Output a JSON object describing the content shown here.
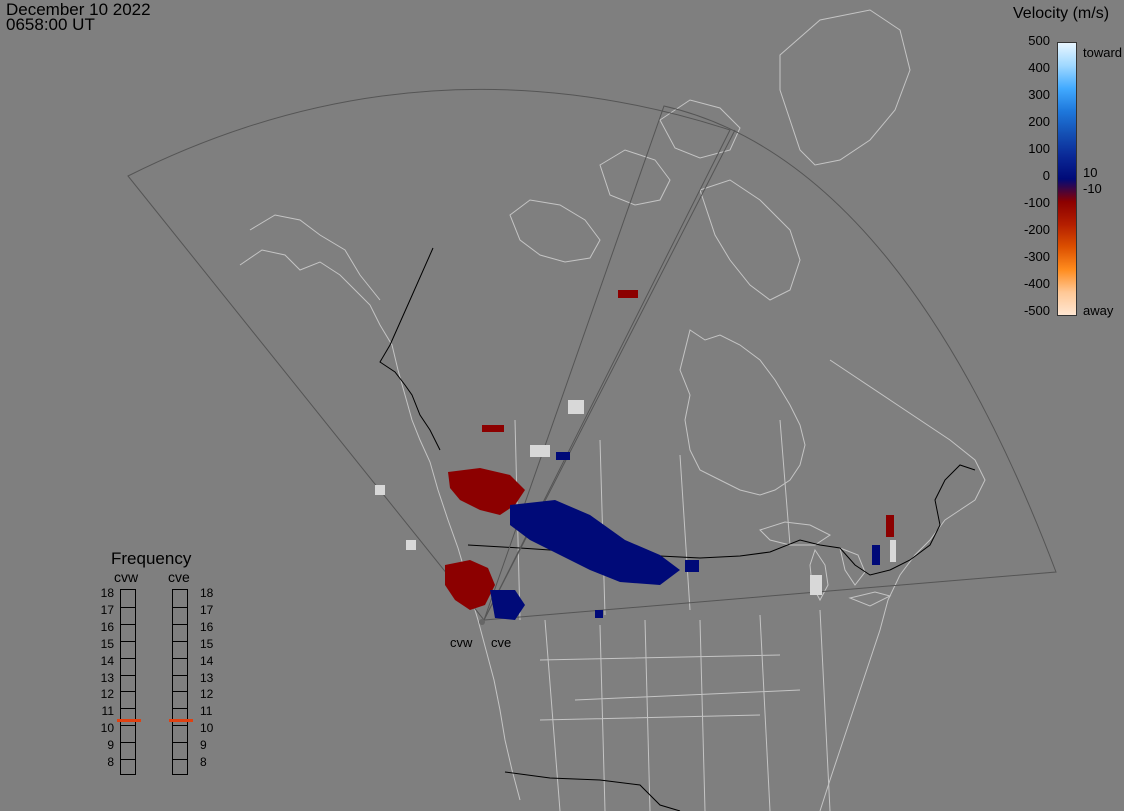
{
  "timestamp": {
    "date": "December 10 2022",
    "time": "0658:00 UT"
  },
  "velocity_scale": {
    "title": "Velocity (m/s)",
    "ticks": [
      "500",
      "400",
      "300",
      "200",
      "100",
      "0",
      "-100",
      "-200",
      "-300",
      "-400",
      "-500"
    ],
    "threshold_pos": "10",
    "threshold_neg": "-10",
    "toward_label": "toward",
    "away_label": "away",
    "colors": [
      "#e8f6ff",
      "#9fd8ff",
      "#42aaff",
      "#1e78dc",
      "#1450b4",
      "#0a2896",
      "#000a78",
      "#8c0000",
      "#b41e00",
      "#dc5000",
      "#ff8c1e",
      "#ffc896",
      "#ffe6d2"
    ]
  },
  "frequency": {
    "title": "Frequency",
    "radars": [
      "cvw",
      "cve"
    ],
    "levels": [
      "18",
      "17",
      "16",
      "15",
      "14",
      "13",
      "12",
      "11",
      "10",
      "9",
      "8"
    ],
    "active_mhz": {
      "cvw": 10.8,
      "cve": 10.8
    },
    "marker_color": "#e04010"
  },
  "sites": [
    "cvw",
    "cve"
  ],
  "colors": {
    "background": "#7f7f7f",
    "coast": "#c4c4c4",
    "border": "#000000",
    "fov": "#555555",
    "toward": "#000a78",
    "away": "#8c0000",
    "ground": "#d8d8d8"
  }
}
